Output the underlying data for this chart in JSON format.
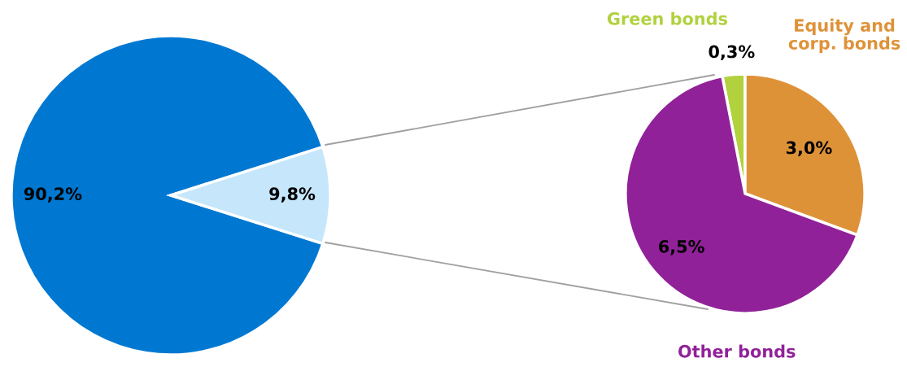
{
  "chart_data": [
    {
      "type": "pie",
      "categories": [
        null,
        null
      ],
      "values": [
        90.2,
        9.8
      ],
      "colors": [
        "#0078d2",
        "#c5e6fb"
      ],
      "value_labels": [
        "90,2%",
        "9,8%"
      ]
    },
    {
      "type": "pie",
      "categories": [
        "Green bonds",
        "Equity and\ncorp. bonds",
        "Other bonds"
      ],
      "values": [
        0.3,
        3.0,
        6.5
      ],
      "colors": [
        "#b1d13e",
        "#de9238",
        "#912199"
      ],
      "value_labels": [
        "0,3%",
        "3,0%",
        "6,5%"
      ]
    }
  ]
}
